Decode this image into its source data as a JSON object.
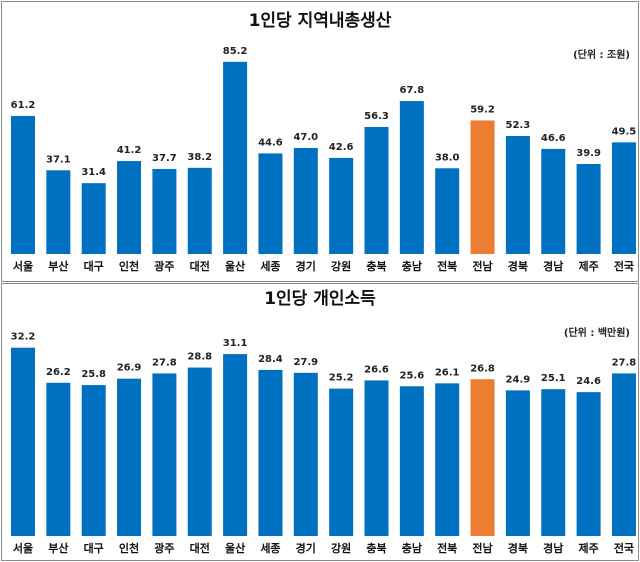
{
  "colors": {
    "bar": "#0070c0",
    "highlight": "#ed7d31"
  },
  "chart_data": [
    {
      "type": "bar",
      "title": "1인당 지역내총생산",
      "unit": "(단위 : 조원)",
      "categories": [
        "서울",
        "부산",
        "대구",
        "인천",
        "광주",
        "대전",
        "울산",
        "세종",
        "경기",
        "강원",
        "충북",
        "충남",
        "전북",
        "전남",
        "경북",
        "경남",
        "제주",
        "전국"
      ],
      "values": [
        61.2,
        37.1,
        31.4,
        41.2,
        37.7,
        38.2,
        85.2,
        44.6,
        47.0,
        42.6,
        56.3,
        67.8,
        38.0,
        59.2,
        52.3,
        46.6,
        39.9,
        49.5
      ],
      "value_labels": [
        "61.2",
        "37.1",
        "31.4",
        "41.2",
        "37.7",
        "38.2",
        "85.2",
        "44.6",
        "47.0",
        "42.6",
        "56.3",
        "67.8",
        "38.0",
        "59.2",
        "52.3",
        "46.6",
        "39.9",
        "49.5"
      ],
      "highlight": "전남",
      "ylim": [
        0,
        86
      ],
      "grid": false
    },
    {
      "type": "bar",
      "title": "1인당 개인소득",
      "unit": "(단위 : 백만원)",
      "categories": [
        "서울",
        "부산",
        "대구",
        "인천",
        "광주",
        "대전",
        "울산",
        "세종",
        "경기",
        "강원",
        "충북",
        "충남",
        "전북",
        "전남",
        "경북",
        "경남",
        "제주",
        "전국"
      ],
      "values": [
        32.2,
        26.2,
        25.8,
        26.9,
        27.8,
        28.8,
        31.1,
        28.4,
        27.9,
        25.2,
        26.6,
        25.6,
        26.1,
        26.8,
        24.9,
        25.1,
        24.6,
        27.8
      ],
      "value_labels": [
        "32.2",
        "26.2",
        "25.8",
        "26.9",
        "27.8",
        "28.8",
        "31.1",
        "28.4",
        "27.9",
        "25.2",
        "26.6",
        "25.6",
        "26.1",
        "26.8",
        "24.9",
        "25.1",
        "24.6",
        "27.8"
      ],
      "highlight": "전남",
      "ylim": [
        0,
        33
      ],
      "grid": false
    }
  ]
}
